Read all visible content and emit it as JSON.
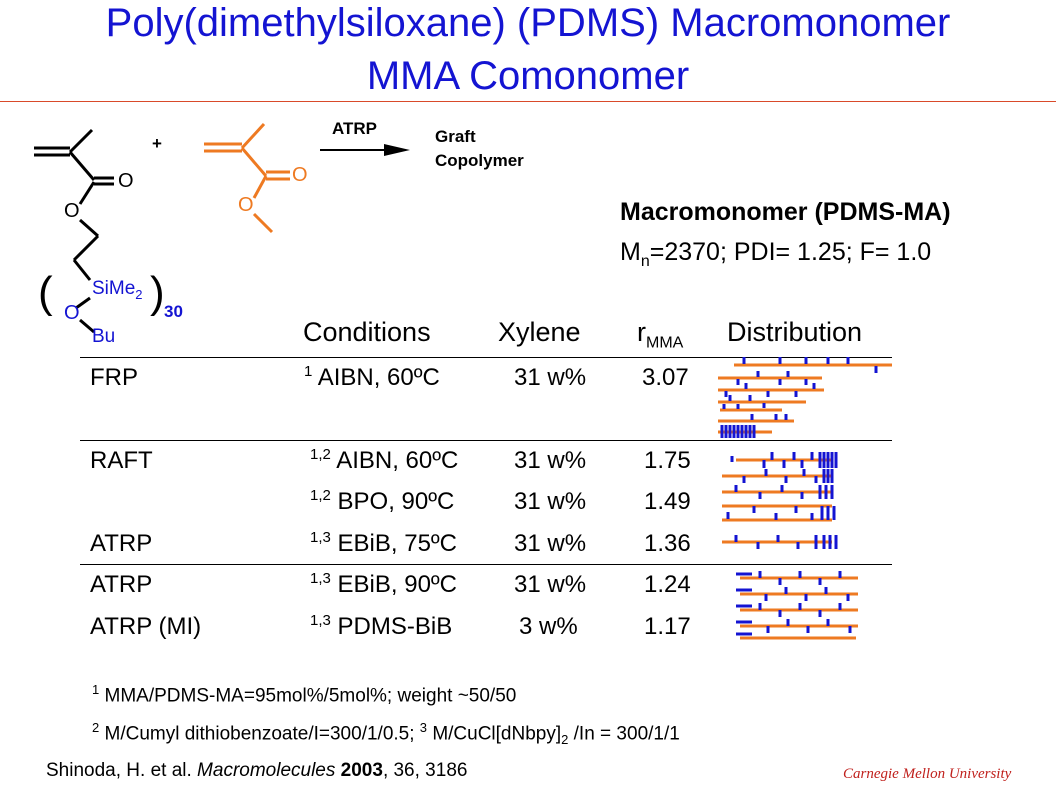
{
  "title": {
    "line1": "Poly(dimethylsiloxane) (PDMS) Macromonomer",
    "line2": "MMA Comonomer"
  },
  "scheme": {
    "plus": "+",
    "arrow_label": "ATRP",
    "product_line1": "Graft",
    "product_line2": "Copolymer",
    "macromonomer": {
      "carbonyl_o": "O",
      "ester_o": "O",
      "silicon": "SiMe",
      "silicon_sub": "2",
      "chain_o": "O",
      "end_group": "Bu",
      "repeat": "30",
      "paren_open": "(",
      "paren_close": ")"
    },
    "mma": {
      "carbonyl_o": "O",
      "ester_o": "O"
    }
  },
  "macromonomer_info": {
    "name": "Macromonomer (PDMS-MA)",
    "m": "M",
    "n_sub": "n",
    "props": "=2370; PDI= 1.25; F= 1.0"
  },
  "table": {
    "headers": {
      "conditions": "Conditions",
      "xylene": "Xylene",
      "r": "r",
      "r_sub": "MMA",
      "distribution": "Distribution"
    },
    "rows": [
      {
        "method": "FRP",
        "sup": "1",
        "cond": "AIBN, 60ºC",
        "xylene": "31 w%",
        "r": "3.07"
      },
      {
        "method": "RAFT",
        "sup": "1,2",
        "cond": "AIBN, 60ºC",
        "xylene": "31 w%",
        "r": "1.75"
      },
      {
        "method": "",
        "sup": "1,2",
        "cond": "BPO, 90ºC",
        "xylene": "31 w%",
        "r": "1.49"
      },
      {
        "method": "ATRP",
        "sup": "1,3",
        "cond": "EBiB, 75ºC",
        "xylene": "31 w%",
        "r": "1.36"
      },
      {
        "method": "ATRP",
        "sup": "1,3",
        "cond": "EBiB, 90ºC",
        "xylene": "31 w%",
        "r": "1.24"
      },
      {
        "method": "ATRP (MI)",
        "sup": "1,3",
        "cond": "PDMS-BiB",
        "xylene": "3 w%",
        "r": "1.17"
      }
    ]
  },
  "footnotes": {
    "f1_sup": "1",
    "f1": "MMA/PDMS-MA=95mol%/5mol%; weight ~50/50",
    "f2_sup": "2",
    "f2": "M/Cumyl dithiobenzoate/I=300/1/0.5;",
    "f3_sup": "3",
    "f3": "M/CuCl[dNbpy]",
    "f3_sub": "2",
    "f3_tail": "/In = 300/1/1"
  },
  "citation": {
    "authors": "Shinoda, H. et al.",
    "journal": "Macromolecules",
    "year": "2003",
    "rest": ", 36, 3186"
  },
  "footer_brand": "Carnegie Mellon University",
  "colors": {
    "title": "#1414d2",
    "rule": "#d94a2a",
    "mma": "#ee7a22",
    "pdms": "#1414d2",
    "brand": "#c0201c"
  }
}
